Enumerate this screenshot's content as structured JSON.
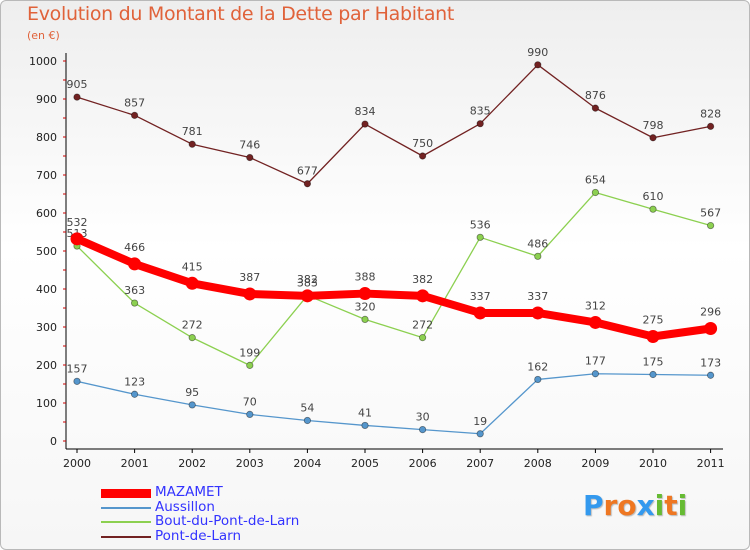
{
  "title": "Evolution du Montant de la Dette par Habitant",
  "unit_label": "(en €)",
  "colors": {
    "title": "#e0623a",
    "legend_text": "#3333ff",
    "axis": "#000000",
    "tick": "#cc0000",
    "value_labels": "#444444"
  },
  "chart_data": {
    "type": "line",
    "title": "Evolution du Montant de la Dette par Habitant",
    "ylabel": "(en €)",
    "xlabel": "",
    "ylim": [
      0,
      1000
    ],
    "yticks": [
      0,
      100,
      200,
      300,
      400,
      500,
      600,
      700,
      800,
      900,
      1000
    ],
    "grid": false,
    "legend_position": "bottom-left",
    "x": [
      "2000",
      "2001",
      "2002",
      "2003",
      "2004",
      "2005",
      "2006",
      "2007",
      "2008",
      "2009",
      "2010",
      "2011"
    ],
    "series": [
      {
        "name": "Pont-de-Larn",
        "color": "#722222",
        "values": [
          905,
          857,
          781,
          746,
          677,
          834,
          750,
          835,
          990,
          876,
          798,
          828
        ]
      },
      {
        "name": "Bout-du-Pont-de-Larn",
        "color": "#8cd050",
        "values": [
          513,
          363,
          272,
          199,
          383,
          320,
          272,
          536,
          486,
          654,
          610,
          567
        ]
      },
      {
        "name": "Aussillon",
        "color": "#5596cc",
        "values": [
          157,
          123,
          95,
          70,
          54,
          41,
          30,
          19,
          162,
          177,
          175,
          173
        ]
      },
      {
        "name": "MAZAMET",
        "color": "#ff0000",
        "values": [
          532,
          466,
          415,
          387,
          382,
          388,
          382,
          337,
          337,
          312,
          275,
          296
        ]
      }
    ]
  },
  "legend": [
    {
      "label": "MAZAMET",
      "color": "#ff0000",
      "thick": true
    },
    {
      "label": "Aussillon",
      "color": "#5596cc",
      "thick": false
    },
    {
      "label": "Bout-du-Pont-de-Larn",
      "color": "#8cd050",
      "thick": false
    },
    {
      "label": "Pont-de-Larn",
      "color": "#722222",
      "thick": false
    }
  ],
  "logo": {
    "text": "Proxiti",
    "letters": [
      "P",
      "r",
      "o",
      "x",
      "i",
      "t",
      "i"
    ],
    "letter_colors": [
      "#3399ee",
      "#ee7722",
      "#ee7722",
      "#3399ee",
      "#66bb33",
      "#ee7722",
      "#66bb33"
    ]
  }
}
